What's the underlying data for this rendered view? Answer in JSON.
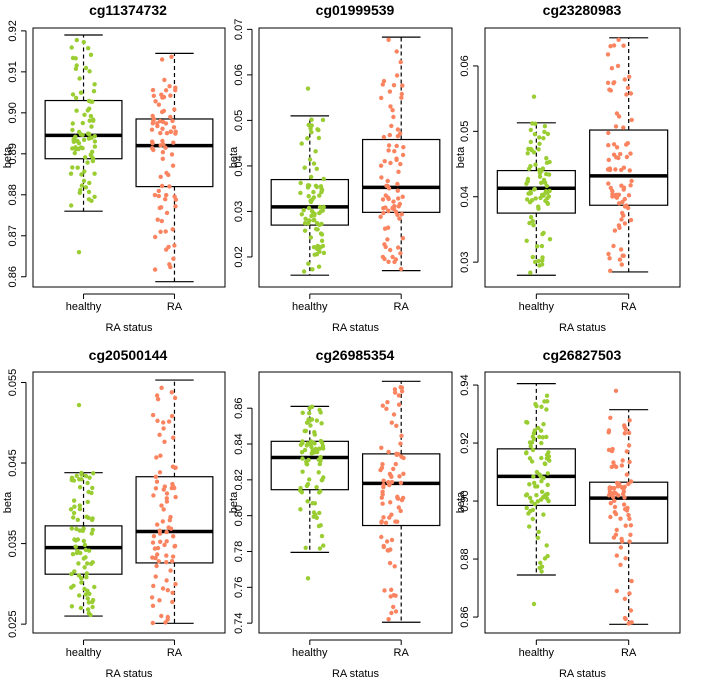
{
  "chart_data": [
    {
      "type": "boxplot",
      "title": "cg11374732",
      "xlabel": "RA status",
      "ylabel": "beta",
      "categories": [
        "healthy",
        "RA"
      ],
      "yticks": [
        "0.86",
        "0.87",
        "0.88",
        "0.89",
        "0.90",
        "0.91",
        "0.92"
      ],
      "ylim": [
        0.8575,
        0.9207
      ],
      "boxes": [
        {
          "group": "healthy",
          "color": "#9ACD32",
          "whisker_low": 0.876,
          "q1": 0.8888,
          "median": 0.8945,
          "q3": 0.903,
          "whisker_high": 0.919,
          "n": 80,
          "outliers": [
            0.866
          ]
        },
        {
          "group": "RA",
          "color": "#FA8460",
          "whisker_low": 0.8588,
          "q1": 0.882,
          "median": 0.892,
          "q3": 0.8985,
          "whisker_high": 0.9145,
          "n": 80,
          "outliers": []
        }
      ]
    },
    {
      "type": "boxplot",
      "title": "cg01999539",
      "xlabel": "RA status",
      "ylabel": "beta",
      "categories": [
        "healthy",
        "RA"
      ],
      "yticks": [
        "0.02",
        "0.03",
        "0.04",
        "0.05",
        "0.06",
        "0.07"
      ],
      "ylim": [
        0.0134,
        0.0703
      ],
      "boxes": [
        {
          "group": "healthy",
          "color": "#9ACD32",
          "whisker_low": 0.016,
          "q1": 0.027,
          "median": 0.031,
          "q3": 0.037,
          "whisker_high": 0.051,
          "n": 80,
          "outliers": [
            0.057
          ]
        },
        {
          "group": "RA",
          "color": "#FA8460",
          "whisker_low": 0.017,
          "q1": 0.0298,
          "median": 0.0353,
          "q3": 0.0458,
          "whisker_high": 0.0683,
          "n": 80,
          "outliers": []
        }
      ]
    },
    {
      "type": "boxplot",
      "title": "cg23280983",
      "xlabel": "RA status",
      "ylabel": "beta",
      "categories": [
        "healthy",
        "RA"
      ],
      "yticks": [
        "0.03",
        "0.04",
        "0.05",
        "0.06"
      ],
      "ylim": [
        0.0262,
        0.0658
      ],
      "boxes": [
        {
          "group": "healthy",
          "color": "#9ACD32",
          "whisker_low": 0.028,
          "q1": 0.0375,
          "median": 0.0413,
          "q3": 0.044,
          "whisker_high": 0.0513,
          "n": 80,
          "outliers": [
            0.0553
          ]
        },
        {
          "group": "RA",
          "color": "#FA8460",
          "whisker_low": 0.0285,
          "q1": 0.0387,
          "median": 0.0432,
          "q3": 0.0502,
          "whisker_high": 0.0643,
          "n": 80,
          "outliers": []
        }
      ]
    },
    {
      "type": "boxplot",
      "title": "cg20500144",
      "xlabel": "RA status",
      "ylabel": "beta",
      "categories": [
        "healthy",
        "RA"
      ],
      "yticks": [
        "0.025",
        "0.035",
        "0.045",
        "0.055"
      ],
      "ylim": [
        0.0239,
        0.0563
      ],
      "boxes": [
        {
          "group": "healthy",
          "color": "#9ACD32",
          "whisker_low": 0.026,
          "q1": 0.0312,
          "median": 0.0345,
          "q3": 0.0372,
          "whisker_high": 0.0438,
          "n": 80,
          "outliers": [
            0.0522
          ]
        },
        {
          "group": "RA",
          "color": "#FA8460",
          "whisker_low": 0.0251,
          "q1": 0.0326,
          "median": 0.0365,
          "q3": 0.0433,
          "whisker_high": 0.0553,
          "n": 80,
          "outliers": []
        }
      ]
    },
    {
      "type": "boxplot",
      "title": "cg26985354",
      "xlabel": "RA status",
      "ylabel": "beta",
      "categories": [
        "healthy",
        "RA"
      ],
      "yticks": [
        "0.74",
        "0.76",
        "0.78",
        "0.80",
        "0.82",
        "0.84",
        "0.86"
      ],
      "ylim": [
        0.7345,
        0.8802
      ],
      "boxes": [
        {
          "group": "healthy",
          "color": "#9ACD32",
          "whisker_low": 0.7795,
          "q1": 0.8145,
          "median": 0.8325,
          "q3": 0.8415,
          "whisker_high": 0.861,
          "n": 80,
          "outliers": [
            0.765
          ]
        },
        {
          "group": "RA",
          "color": "#FA8460",
          "whisker_low": 0.7405,
          "q1": 0.7945,
          "median": 0.818,
          "q3": 0.8345,
          "whisker_high": 0.875,
          "n": 80,
          "outliers": []
        }
      ]
    },
    {
      "type": "boxplot",
      "title": "cg26827503",
      "xlabel": "RA status",
      "ylabel": "beta",
      "categories": [
        "healthy",
        "RA"
      ],
      "yticks": [
        "0.86",
        "0.88",
        "0.90",
        "0.92",
        "0.94"
      ],
      "ylim": [
        0.8545,
        0.9445
      ],
      "boxes": [
        {
          "group": "healthy",
          "color": "#9ACD32",
          "whisker_low": 0.8745,
          "q1": 0.8985,
          "median": 0.9085,
          "q3": 0.918,
          "whisker_high": 0.9405,
          "n": 80,
          "outliers": [
            0.8645
          ]
        },
        {
          "group": "RA",
          "color": "#FA8460",
          "whisker_low": 0.8575,
          "q1": 0.8855,
          "median": 0.901,
          "q3": 0.9065,
          "whisker_high": 0.9315,
          "n": 80,
          "outliers": [
            0.938
          ]
        }
      ]
    }
  ]
}
